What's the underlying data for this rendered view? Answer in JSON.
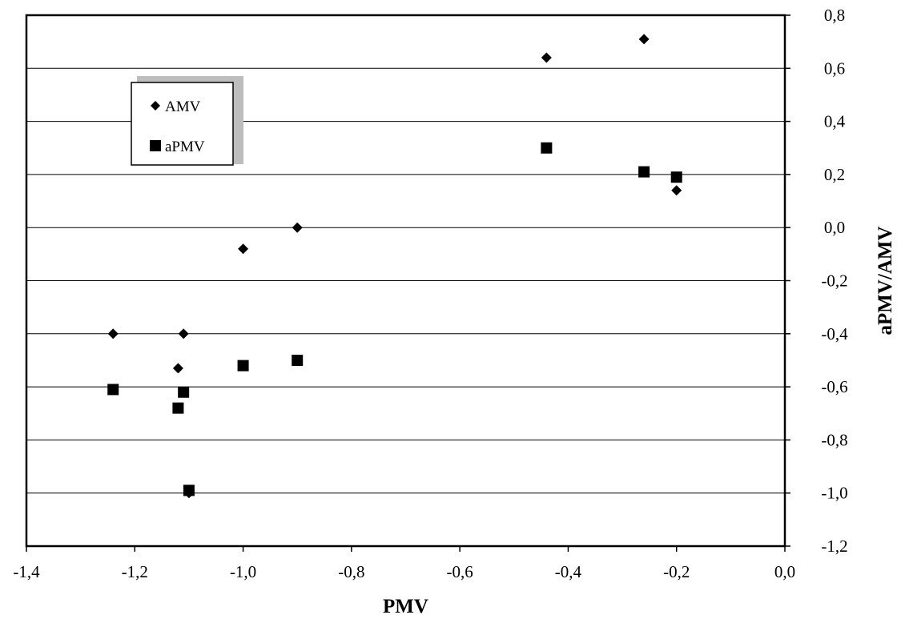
{
  "chart_data": {
    "type": "scatter",
    "xlabel": "PMV",
    "ylabel": "aPMV/AMV",
    "xlim": [
      -1.4,
      0.0
    ],
    "ylim": [
      -1.2,
      0.8
    ],
    "x_ticks": [
      "-1,4",
      "-1,2",
      "-1,0",
      "-0,8",
      "-0,6",
      "-0,4",
      "-0,2",
      "0,0"
    ],
    "y_ticks": [
      "0,8",
      "0,6",
      "0,4",
      "0,2",
      "0,0",
      "-0,2",
      "-0,4",
      "-0,6",
      "-0,8",
      "-1,0",
      "-1,2"
    ],
    "grid": "horizontal",
    "legend_position": "top-left",
    "series": [
      {
        "name": "AMV",
        "marker": "diamond",
        "color": "#000000",
        "points": [
          {
            "x": -1.24,
            "y": -0.4
          },
          {
            "x": -1.11,
            "y": -0.4
          },
          {
            "x": -1.12,
            "y": -0.53
          },
          {
            "x": -1.1,
            "y": -1.0
          },
          {
            "x": -1.0,
            "y": -0.08
          },
          {
            "x": -0.9,
            "y": 0.0
          },
          {
            "x": -0.44,
            "y": 0.64
          },
          {
            "x": -0.26,
            "y": 0.71
          },
          {
            "x": -0.2,
            "y": 0.14
          }
        ]
      },
      {
        "name": "aPMV",
        "marker": "square",
        "color": "#000000",
        "points": [
          {
            "x": -1.24,
            "y": -0.61
          },
          {
            "x": -1.12,
            "y": -0.68
          },
          {
            "x": -1.11,
            "y": -0.62
          },
          {
            "x": -1.1,
            "y": -0.99
          },
          {
            "x": -1.0,
            "y": -0.52
          },
          {
            "x": -0.9,
            "y": -0.5
          },
          {
            "x": -0.44,
            "y": 0.3
          },
          {
            "x": -0.26,
            "y": 0.21
          },
          {
            "x": -0.2,
            "y": 0.19
          }
        ]
      }
    ]
  }
}
